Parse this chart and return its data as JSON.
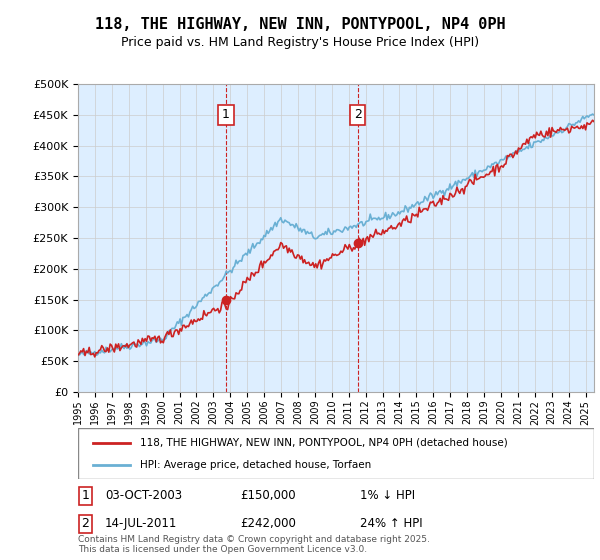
{
  "title": "118, THE HIGHWAY, NEW INN, PONTYPOOL, NP4 0PH",
  "subtitle": "Price paid vs. HM Land Registry's House Price Index (HPI)",
  "legend_line1": "118, THE HIGHWAY, NEW INN, PONTYPOOL, NP4 0PH (detached house)",
  "legend_line2": "HPI: Average price, detached house, Torfaen",
  "annotation1_label": "1",
  "annotation1_date": "03-OCT-2003",
  "annotation1_price": "£150,000",
  "annotation1_hpi": "1% ↓ HPI",
  "annotation2_label": "2",
  "annotation2_date": "14-JUL-2011",
  "annotation2_price": "£242,000",
  "annotation2_hpi": "24% ↑ HPI",
  "footer": "Contains HM Land Registry data © Crown copyright and database right 2025.\nThis data is licensed under the Open Government Licence v3.0.",
  "sale1_year": 2003.75,
  "sale1_price": 150000,
  "sale2_year": 2011.53,
  "sale2_price": 242000,
  "hpi_color": "#6ab0d4",
  "price_color": "#cc2222",
  "background_chart": "#ddeeff",
  "grid_color": "#cccccc",
  "ylim_min": 0,
  "ylim_max": 500000,
  "xlim_min": 1995,
  "xlim_max": 2025.5,
  "annotation_box_color": "#cc2222",
  "vline_color": "#cc2222"
}
